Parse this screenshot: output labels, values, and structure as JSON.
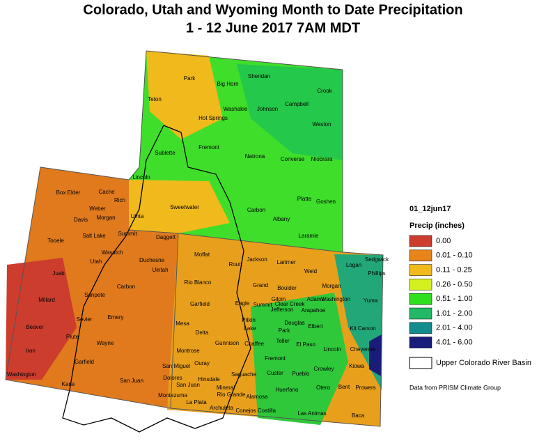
{
  "header": {
    "title": [
      "Colorado, Utah and Wyoming Month to Date Precipitation",
      "1 - 12 June 2017 7AM MDT"
    ]
  },
  "legend": {
    "title": "01_12jun17",
    "subtitle": "Precip (inches)",
    "items": [
      {
        "label": "0.00",
        "color": "#cc3d2e"
      },
      {
        "label": "0.01 - 0.10",
        "color": "#e8841c"
      },
      {
        "label": "0.11 - 0.25",
        "color": "#f0b91c"
      },
      {
        "label": "0.26 - 0.50",
        "color": "#d4f01e"
      },
      {
        "label": "0.51 - 1.00",
        "color": "#2ee01e"
      },
      {
        "label": "1.01 - 2.00",
        "color": "#22b866"
      },
      {
        "label": "2.01 - 4.00",
        "color": "#128c8c"
      },
      {
        "label": "4.01 - 6.00",
        "color": "#1a1c7a"
      }
    ],
    "basin": "Upper Colorado River Basin"
  },
  "source": "Data from PRISM Climate Group",
  "counties": [
    "Park",
    "Big Horn",
    "Sheridan",
    "Crook",
    "Teton",
    "Washakie",
    "Johnson",
    "Campbell",
    "Hot Springs",
    "Weston",
    "Fremont",
    "Sublette",
    "Natrona",
    "Converse",
    "Niobrara",
    "Lincoln",
    "Platte",
    "Goshen",
    "Sweetwater",
    "Carbon",
    "Albany",
    "Laramie",
    "Box Elder",
    "Cache",
    "Rich",
    "Weber",
    "Davis",
    "Morgan",
    "Uinta",
    "Summit",
    "Daggett",
    "Salt Lake",
    "Tooele",
    "Wasatch",
    "Duchesne",
    "Utah",
    "Juab",
    "Uintah",
    "Carbon",
    "Sanpete",
    "Millard",
    "Emery",
    "Sevier",
    "Beaver",
    "Piute",
    "Wayne",
    "Iron",
    "Garfield",
    "Washington",
    "Kane",
    "San Juan",
    "Moffat",
    "Jackson",
    "Larimer",
    "Logan",
    "Sedgwick",
    "Phillips",
    "Routt",
    "Weld",
    "Rio Blanco",
    "Grand",
    "Boulder",
    "Morgan",
    "Garfield",
    "Eagle",
    "Summit",
    "Gilpin",
    "Clear Creek",
    "Adams",
    "Washington",
    "Yuma",
    "Jefferson",
    "Arapahoe",
    "Mesa",
    "Pitkin",
    "Lake",
    "Douglas",
    "Elbert",
    "Kit Carson",
    "Delta",
    "Park",
    "Teller",
    "El Paso",
    "Lincoln",
    "Cheyenne",
    "Chaffee",
    "Gunnison",
    "Montrose",
    "Fremont",
    "Kiowa",
    "Ouray",
    "Crowley",
    "San Miguel",
    "Hinsdale",
    "Saguache",
    "Custer",
    "Pueblo",
    "Dolores",
    "San Juan",
    "Mineral",
    "Otero",
    "Bent",
    "Prowers",
    "Huerfano",
    "Rio Grande",
    "Alamosa",
    "Montezuma",
    "La Plata",
    "Archuleta",
    "Conejos",
    "Costilla",
    "Las Animas",
    "Baca"
  ]
}
